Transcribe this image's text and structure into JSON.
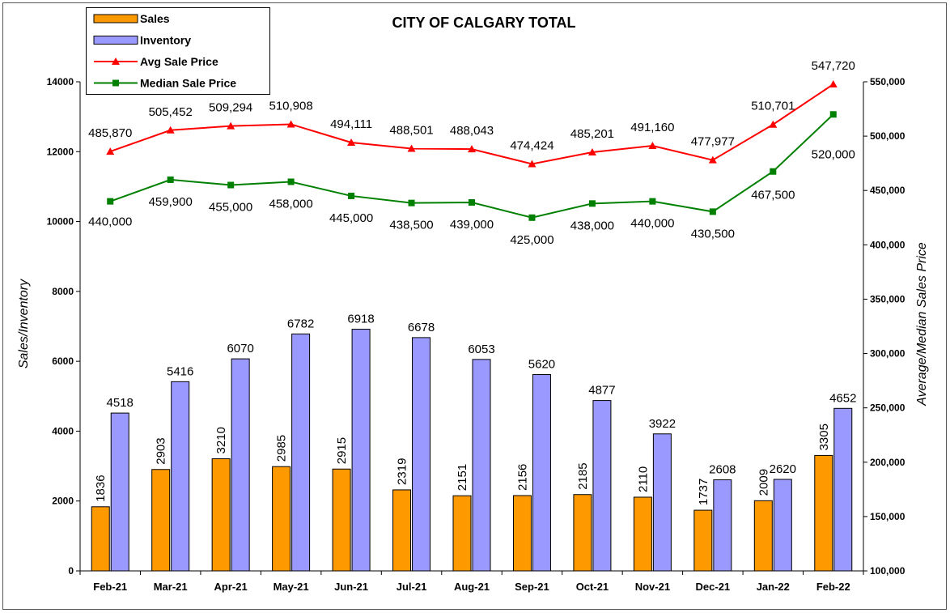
{
  "chart_data": {
    "type": "bar",
    "title": "CITY OF CALGARY TOTAL",
    "ylabel": "Sales/Inventory",
    "y2label": "Average/Median Sales Price",
    "xlabel": "",
    "ylim": [
      0,
      14000
    ],
    "y_ticks": [
      "0",
      "2000",
      "4000",
      "6000",
      "8000",
      "10000",
      "12000",
      "14000"
    ],
    "y2lim": [
      100000,
      550000
    ],
    "y2_ticks": [
      "100,000",
      "150,000",
      "200,000",
      "250,000",
      "300,000",
      "350,000",
      "400,000",
      "450,000",
      "500,000",
      "550,000"
    ],
    "grid": false,
    "legend": "top-left",
    "categories": [
      "Feb-21",
      "Mar-21",
      "Apr-21",
      "May-21",
      "Jun-21",
      "Jul-21",
      "Aug-21",
      "Sep-21",
      "Oct-21",
      "Nov-21",
      "Dec-21",
      "Jan-22",
      "Feb-22"
    ],
    "series": [
      {
        "name": "Sales",
        "kind": "bar",
        "axis": "left",
        "color": "#FF9900",
        "values": [
          1836,
          2903,
          3210,
          2985,
          2915,
          2319,
          2151,
          2156,
          2185,
          2110,
          1737,
          2009,
          3305
        ],
        "labels": [
          "1836",
          "2903",
          "3210",
          "2985",
          "2915",
          "2319",
          "2151",
          "2156",
          "2185",
          "2110",
          "1737",
          "2009",
          "3305"
        ]
      },
      {
        "name": "Inventory",
        "kind": "bar",
        "axis": "left",
        "color": "#9999FF",
        "values": [
          4518,
          5416,
          6070,
          6782,
          6918,
          6678,
          6053,
          5620,
          4877,
          3922,
          2608,
          2620,
          4652
        ],
        "labels": [
          "4518",
          "5416",
          "6070",
          "6782",
          "6918",
          "6678",
          "6053",
          "5620",
          "4877",
          "3922",
          "2608",
          "2620",
          "4652"
        ]
      },
      {
        "name": "Avg Sale Price",
        "kind": "line",
        "axis": "right",
        "marker": "triangle",
        "color": "#FF0000",
        "values": [
          485870,
          505452,
          509294,
          510908,
          494111,
          488501,
          488043,
          474424,
          485201,
          491160,
          477977,
          510701,
          547720
        ],
        "labels": [
          "485,870",
          "505,452",
          "509,294",
          "510,908",
          "494,111",
          "488,501",
          "488,043",
          "474,424",
          "485,201",
          "491,160",
          "477,977",
          "510,701",
          "547,720"
        ]
      },
      {
        "name": "Median Sale Price",
        "kind": "line",
        "axis": "right",
        "marker": "square",
        "color": "#008000",
        "values": [
          440000,
          459900,
          455000,
          458000,
          445000,
          438500,
          439000,
          425000,
          438000,
          440000,
          430500,
          467500,
          520000
        ],
        "labels": [
          "440,000",
          "459,900",
          "455,000",
          "458,000",
          "445,000",
          "438,500",
          "439,000",
          "425,000",
          "438,000",
          "440,000",
          "430,500",
          "467,500",
          "520,000"
        ]
      }
    ]
  }
}
